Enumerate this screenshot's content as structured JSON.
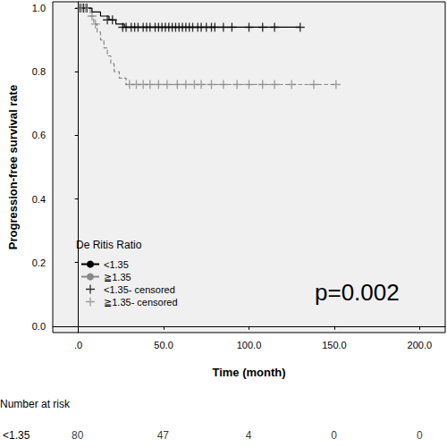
{
  "chart_data": {
    "type": "line",
    "x_label": "Time (month)",
    "y_label": "Progression-free survival rate",
    "legend_title": "De Ritis Ratio",
    "annotations": [
      "p=0.002"
    ],
    "xlim": [
      -15,
      215
    ],
    "xticks": [
      {
        "value": 0,
        "label": ".0"
      },
      {
        "value": 50,
        "label": "50.0"
      },
      {
        "value": 100,
        "label": "100.0"
      },
      {
        "value": 150,
        "label": "150.0"
      },
      {
        "value": 200,
        "label": "200.0"
      }
    ],
    "ylim": [
      -0.02,
      1.02
    ],
    "yticks": [
      {
        "value": 0,
        "label": "0.0"
      },
      {
        "value": 0.2,
        "label": "0.2"
      },
      {
        "value": 0.4,
        "label": "0.4"
      },
      {
        "value": 0.6,
        "label": "0.6"
      },
      {
        "value": 0.8,
        "label": "0.8"
      },
      {
        "value": 1,
        "label": "1.0"
      }
    ],
    "grid": false,
    "legend": "lower left",
    "series": [
      {
        "name": "<1.35",
        "type": "line",
        "color": "#000000",
        "line_style": "solid",
        "x": [
          0,
          8,
          13,
          18,
          22,
          27,
          130
        ],
        "values": [
          1,
          0.988,
          0.975,
          0.963,
          0.95,
          0.94,
          0.94
        ]
      },
      {
        "name": "≧1.35",
        "type": "line",
        "color": "#888888",
        "line_style": "dashed",
        "x": [
          0,
          7,
          9,
          11,
          13,
          15,
          17,
          19,
          21,
          24,
          28,
          151
        ],
        "values": [
          1,
          0.975,
          0.95,
          0.925,
          0.9,
          0.875,
          0.85,
          0.825,
          0.8,
          0.78,
          0.76,
          0.76
        ]
      },
      {
        "name": "<1.35- censored",
        "type": "scatter",
        "color": "#000000",
        "marker": "plus",
        "x": [
          1,
          3,
          5,
          17,
          20,
          26,
          28,
          31,
          33,
          35,
          38,
          40,
          42,
          45,
          47,
          49,
          51,
          53,
          55,
          57,
          59,
          61,
          63,
          65,
          67,
          70,
          72,
          75,
          78,
          80,
          85,
          90,
          100,
          108,
          115,
          130
        ],
        "values": [
          1,
          1,
          1,
          0.963,
          0.963,
          0.94,
          0.94,
          0.94,
          0.94,
          0.94,
          0.94,
          0.94,
          0.94,
          0.94,
          0.94,
          0.94,
          0.94,
          0.94,
          0.94,
          0.94,
          0.94,
          0.94,
          0.94,
          0.94,
          0.94,
          0.94,
          0.94,
          0.94,
          0.94,
          0.94,
          0.94,
          0.94,
          0.94,
          0.94,
          0.94,
          0.94
        ]
      },
      {
        "name": "≧1.35- censored",
        "type": "scatter",
        "color": "#888888",
        "marker": "plus",
        "x": [
          2,
          4,
          8,
          10,
          30,
          34,
          38,
          42,
          47,
          52,
          58,
          63,
          68,
          72,
          78,
          85,
          93,
          100,
          108,
          115,
          125,
          138,
          151
        ],
        "values": [
          1,
          1,
          0.975,
          0.95,
          0.76,
          0.76,
          0.76,
          0.76,
          0.76,
          0.76,
          0.76,
          0.76,
          0.76,
          0.76,
          0.76,
          0.76,
          0.76,
          0.76,
          0.76,
          0.76,
          0.76,
          0.76,
          0.76
        ]
      }
    ],
    "risk_table": {
      "title": "Number at risk",
      "x": [
        0,
        50,
        100,
        150,
        200
      ],
      "rows": [
        {
          "name": "<1.35",
          "values": [
            80,
            47,
            4,
            0,
            0
          ]
        }
      ]
    }
  }
}
